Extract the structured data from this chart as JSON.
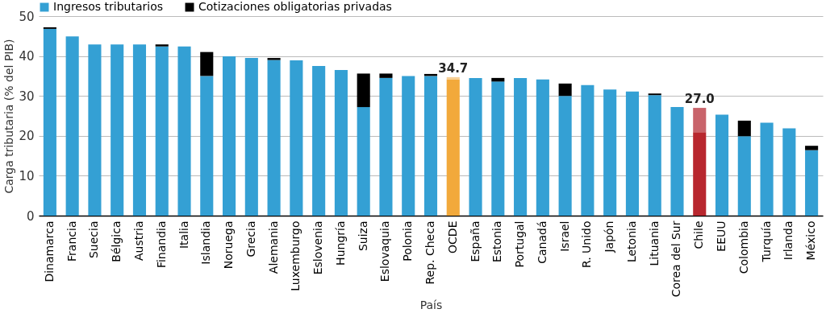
{
  "chart_data": {
    "type": "bar",
    "stacked": true,
    "xlabel": "País",
    "ylabel": "Carga tributaria (% del PIB)",
    "categories": [
      "Dinamarca",
      "Francia",
      "Suecia",
      "Bélgica",
      "Austria",
      "Finandia",
      "Italia",
      "Islandia",
      "Noruega",
      "Grecia",
      "Alemania",
      "Luxemburgo",
      "Eslovenia",
      "Hungría",
      "Suiza",
      "Eslovaquia",
      "Polonia",
      "Rep. Checa",
      "OCDE",
      "España",
      "Estonia",
      "Portugal",
      "Canadá",
      "Israel",
      "R. Unido",
      "Japón",
      "Letonia",
      "Lituania",
      "Corea del Sur",
      "Chile",
      "EEUU",
      "Colombia",
      "Turquía",
      "Irlanda",
      "México"
    ],
    "series": [
      {
        "name": "Ingresos tributarios",
        "color": "#34a0d4",
        "colors": [
          "#34a0d4",
          "#34a0d4",
          "#34a0d4",
          "#34a0d4",
          "#34a0d4",
          "#34a0d4",
          "#34a0d4",
          "#34a0d4",
          "#34a0d4",
          "#34a0d4",
          "#34a0d4",
          "#34a0d4",
          "#34a0d4",
          "#34a0d4",
          "#34a0d4",
          "#34a0d4",
          "#34a0d4",
          "#34a0d4",
          "#f2a93b",
          "#34a0d4",
          "#34a0d4",
          "#34a0d4",
          "#34a0d4",
          "#34a0d4",
          "#34a0d4",
          "#34a0d4",
          "#34a0d4",
          "#34a0d4",
          "#34a0d4",
          "#b8272e",
          "#34a0d4",
          "#34a0d4",
          "#34a0d4",
          "#34a0d4",
          "#34a0d4"
        ],
        "values": [
          46.8,
          44.9,
          42.9,
          42.9,
          42.9,
          42.4,
          42.4,
          35.0,
          39.9,
          39.5,
          39.0,
          38.9,
          37.5,
          36.5,
          27.2,
          34.5,
          35.0,
          35.0,
          34.1,
          34.5,
          33.6,
          34.5,
          34.1,
          30.0,
          32.7,
          31.6,
          31.1,
          30.2,
          27.2,
          20.9,
          25.3,
          19.9,
          23.3,
          21.9,
          16.4
        ]
      },
      {
        "name": "Cotizaciones obligatorias privadas",
        "color": "#000000",
        "colors": [
          "#000000",
          "#000000",
          "#000000",
          "#000000",
          "#000000",
          "#000000",
          "#000000",
          "#000000",
          "#000000",
          "#000000",
          "#000000",
          "#000000",
          "#000000",
          "#000000",
          "#000000",
          "#000000",
          "#000000",
          "#000000",
          "#f7cf94",
          "#000000",
          "#000000",
          "#000000",
          "#000000",
          "#000000",
          "#000000",
          "#000000",
          "#000000",
          "#000000",
          "#000000",
          "#c9646b",
          "#000000",
          "#000000",
          "#000000",
          "#000000",
          "#000000"
        ],
        "values": [
          0.4,
          null,
          null,
          null,
          null,
          0.5,
          null,
          6.0,
          null,
          null,
          0.5,
          null,
          null,
          null,
          8.4,
          1.1,
          null,
          0.5,
          0.6,
          null,
          0.9,
          null,
          null,
          3.1,
          null,
          null,
          null,
          0.4,
          null,
          6.1,
          null,
          3.9,
          null,
          null,
          1.1
        ]
      }
    ],
    "totals": [
      null,
      null,
      null,
      null,
      null,
      null,
      null,
      null,
      null,
      null,
      null,
      null,
      null,
      null,
      null,
      null,
      null,
      null,
      "34.7",
      null,
      null,
      null,
      null,
      null,
      null,
      null,
      null,
      null,
      null,
      "27.0",
      null,
      null,
      null,
      null,
      null
    ],
    "ylim": [
      0,
      50
    ],
    "yticks": [
      0,
      10,
      20,
      30,
      40,
      50
    ],
    "grid": "y",
    "legend": "top"
  }
}
